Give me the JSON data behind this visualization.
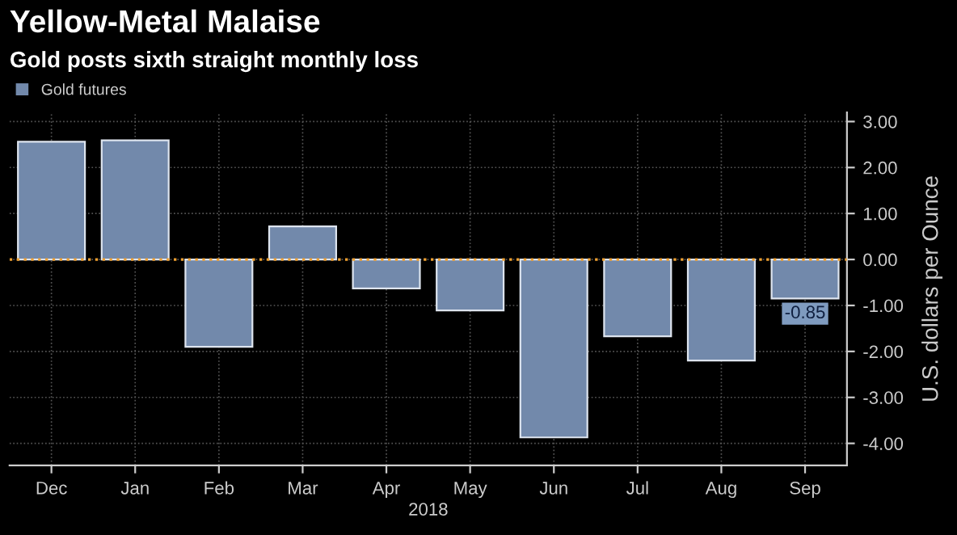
{
  "chart_data": {
    "type": "bar",
    "title": "Yellow-Metal Malaise",
    "subtitle": "Gold posts sixth straight monthly loss",
    "ylabel": "U.S. dollars per Ounce",
    "xlabel": "2018",
    "categories": [
      "Dec",
      "Jan",
      "Feb",
      "Mar",
      "Apr",
      "May",
      "Jun",
      "Jul",
      "Aug",
      "Sep"
    ],
    "series": [
      {
        "name": "Gold futures",
        "color": "#7289ab",
        "values": [
          2.56,
          2.59,
          -1.9,
          0.72,
          -0.63,
          -1.11,
          -3.87,
          -1.67,
          -2.2,
          -0.85
        ],
        "value_labels": [
          null,
          null,
          null,
          null,
          null,
          null,
          null,
          null,
          null,
          "-0.85"
        ]
      }
    ],
    "ylim": [
      -4.48,
      3.2
    ],
    "yticks": [
      {
        "value": 3,
        "label": "3.00"
      },
      {
        "value": 2,
        "label": "2.00"
      },
      {
        "value": 1,
        "label": "1.00"
      },
      {
        "value": 0,
        "label": "0.00"
      },
      {
        "value": -1,
        "label": "-1.00"
      },
      {
        "value": -2,
        "label": "-2.00"
      },
      {
        "value": -3,
        "label": "-3.00"
      },
      {
        "value": -4,
        "label": "-4.00"
      }
    ],
    "ref_lines": [
      {
        "axis": "y",
        "value": 0,
        "color": "#f0a030",
        "line_style": "dotted"
      }
    ],
    "grid": true,
    "legend": "top left"
  }
}
